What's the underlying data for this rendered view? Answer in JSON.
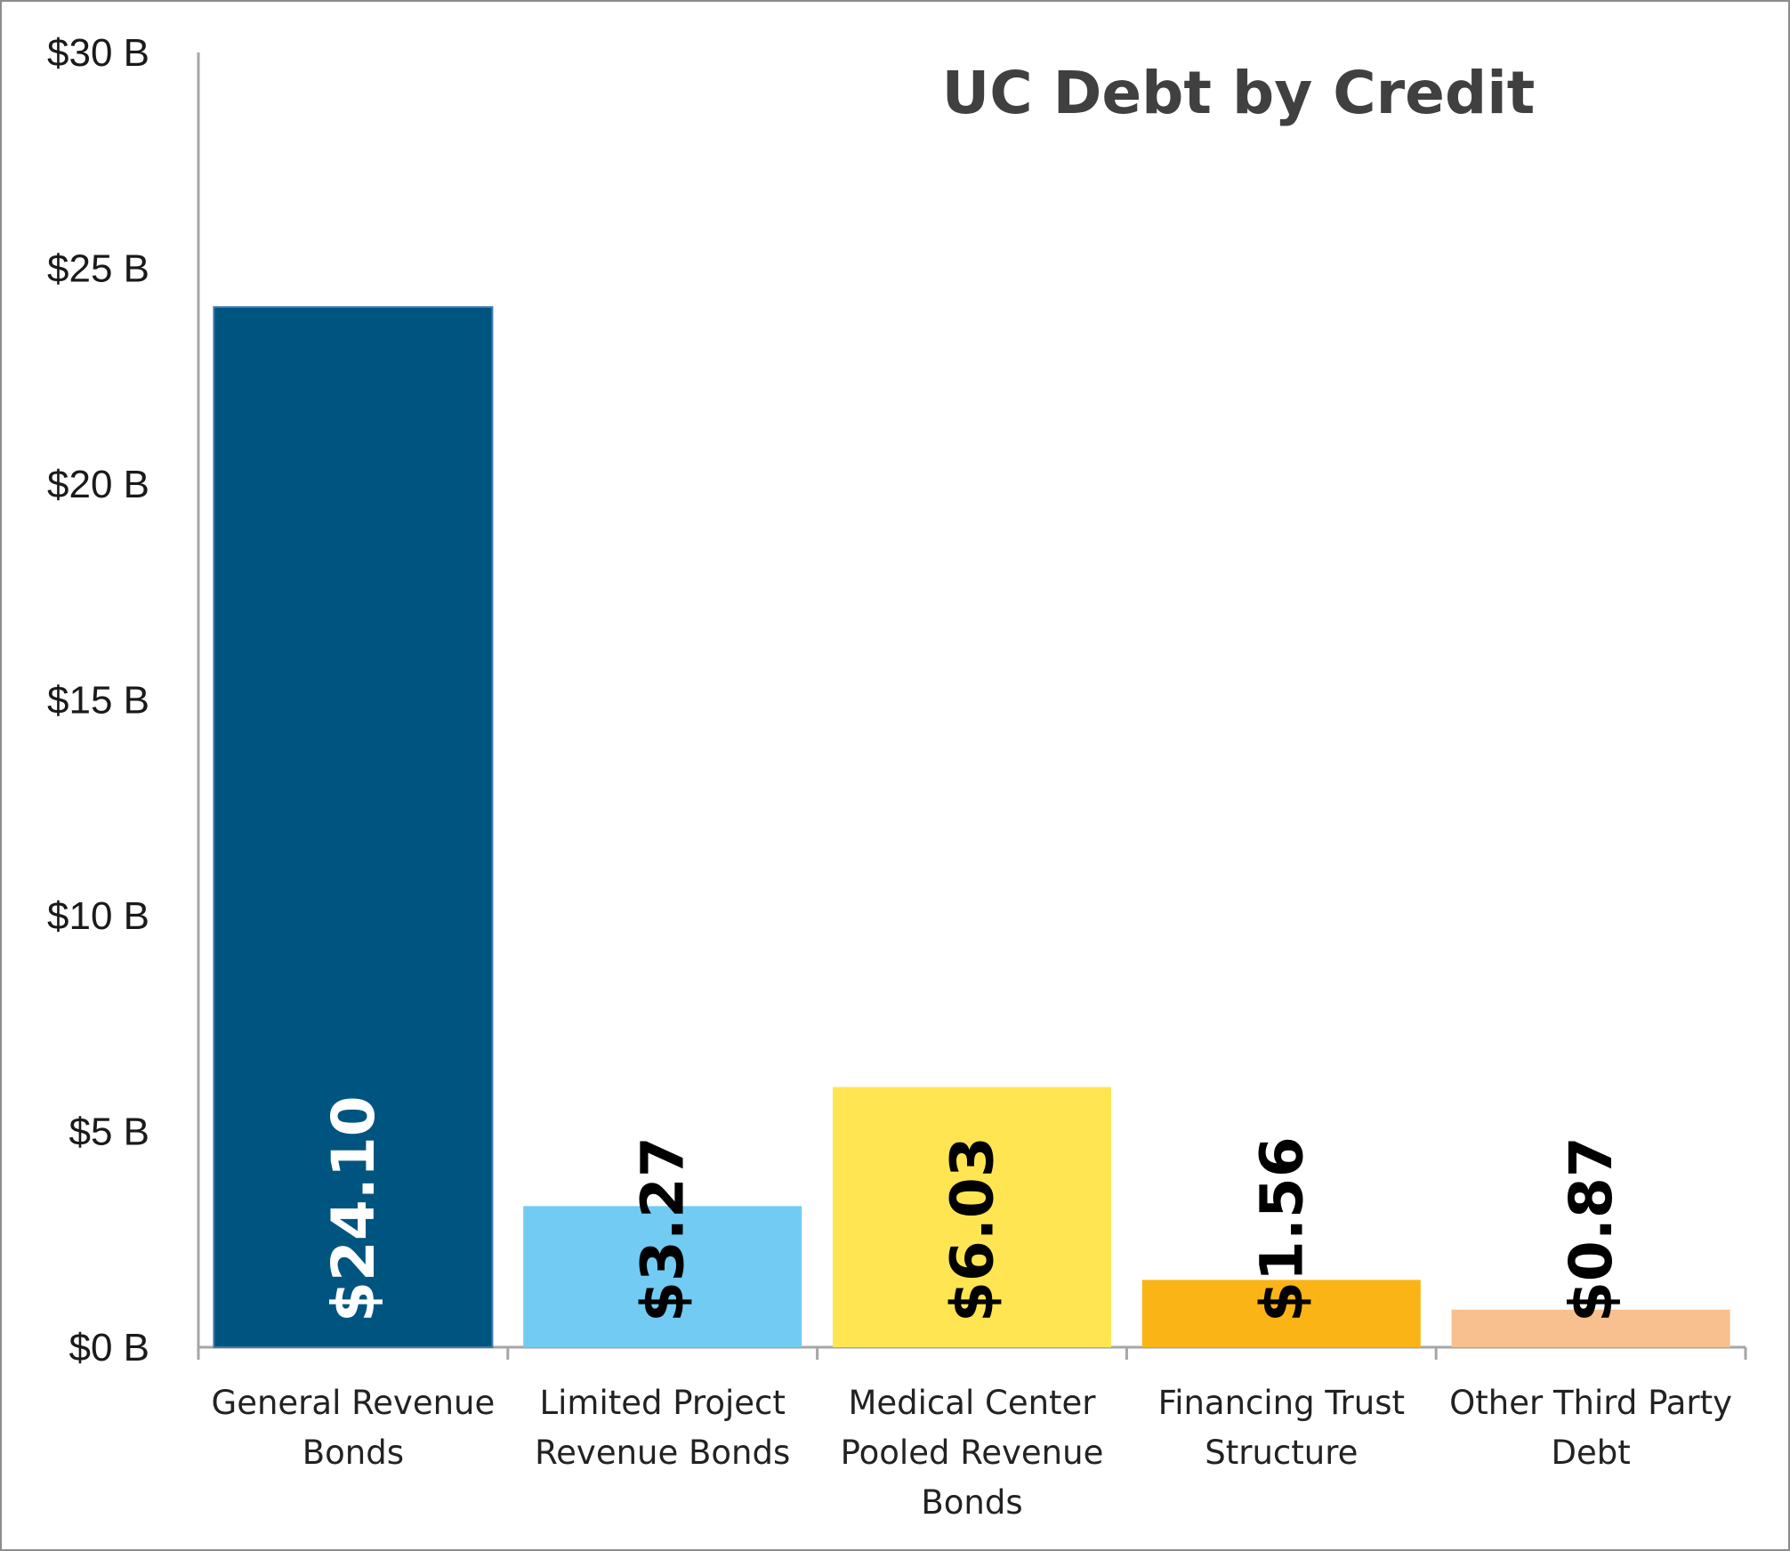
{
  "chart_data": {
    "type": "bar",
    "title": "UC Debt by Credit",
    "xlabel": "",
    "ylabel": "",
    "ylim": [
      0,
      30
    ],
    "yticks": [
      0,
      5,
      10,
      15,
      20,
      25,
      30
    ],
    "ytick_labels": [
      "$0 B",
      "$5 B",
      "$10 B",
      "$15 B",
      "$20 B",
      "$25 B",
      "$30 B"
    ],
    "categories": [
      [
        "General Revenue",
        "Bonds"
      ],
      [
        "Limited Project",
        "Revenue Bonds"
      ],
      [
        "Medical Center",
        "Pooled Revenue",
        "Bonds"
      ],
      [
        "Financing Trust",
        "Structure"
      ],
      [
        "Other Third Party",
        "Debt"
      ]
    ],
    "values": [
      24.1,
      3.27,
      6.03,
      1.56,
      0.87
    ],
    "data_labels": [
      "$24.10",
      "$3.27",
      "$6.03",
      "$1.56",
      "$0.87"
    ],
    "colors": [
      "#005580",
      "#72cbf2",
      "#ffe552",
      "#fbb416",
      "#f8c08f"
    ],
    "label_colors": [
      "#ffffff",
      "#000000",
      "#000000",
      "#000000",
      "#000000"
    ],
    "grid": false,
    "legend": "none"
  }
}
